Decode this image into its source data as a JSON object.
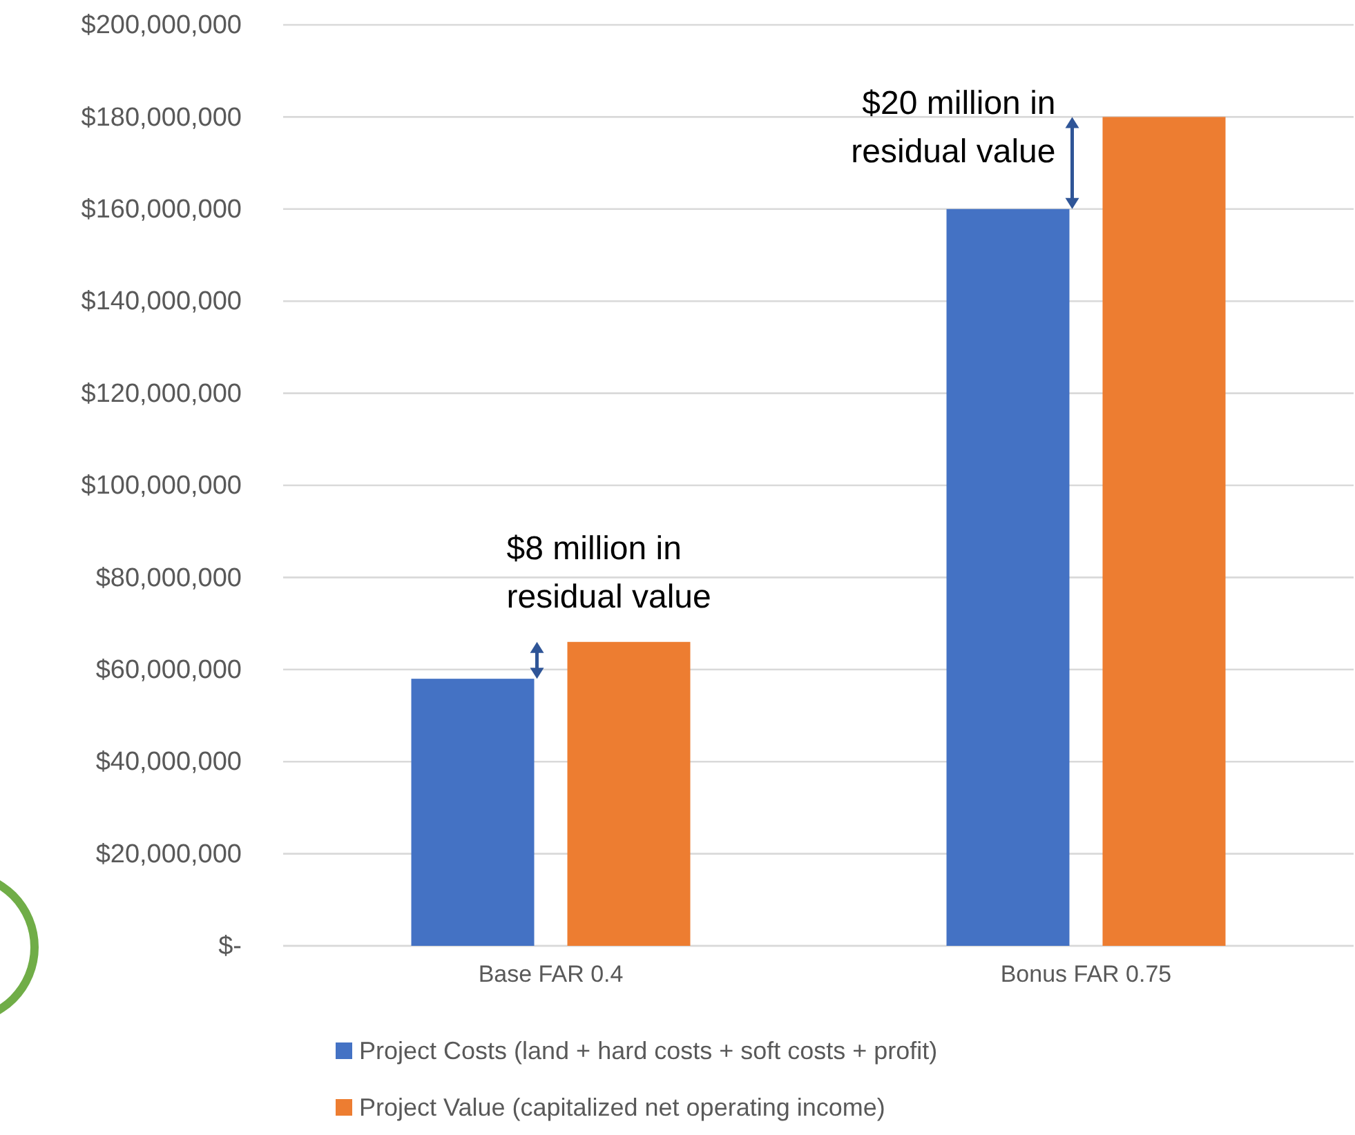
{
  "chart_data": {
    "type": "bar",
    "categories": [
      "Base FAR 0.4",
      "Bonus FAR 0.75"
    ],
    "series": [
      {
        "name": "Project Costs (land + hard costs + soft costs + profit)",
        "color": "#4472c4",
        "values": [
          58000000,
          160000000
        ]
      },
      {
        "name": "Project Value (capitalized net operating income)",
        "color": "#ed7d31",
        "values": [
          66000000,
          180000000
        ]
      }
    ],
    "ylim": [
      0,
      200000000
    ],
    "yticks": [
      {
        "value": 0,
        "label": "$-"
      },
      {
        "value": 20000000,
        "label": "$20,000,000"
      },
      {
        "value": 40000000,
        "label": "$40,000,000"
      },
      {
        "value": 60000000,
        "label": "$60,000,000"
      },
      {
        "value": 80000000,
        "label": "$80,000,000"
      },
      {
        "value": 100000000,
        "label": "$100,000,000"
      },
      {
        "value": 120000000,
        "label": "$120,000,000"
      },
      {
        "value": 140000000,
        "label": "$140,000,000"
      },
      {
        "value": 160000000,
        "label": "$160,000,000"
      },
      {
        "value": 180000000,
        "label": "$180,000,000"
      },
      {
        "value": 200000000,
        "label": "$200,000,000"
      }
    ],
    "grid": "y",
    "legend": "bottom",
    "annotations": [
      "$8 million in residual value",
      "$20 million in residual value"
    ]
  }
}
